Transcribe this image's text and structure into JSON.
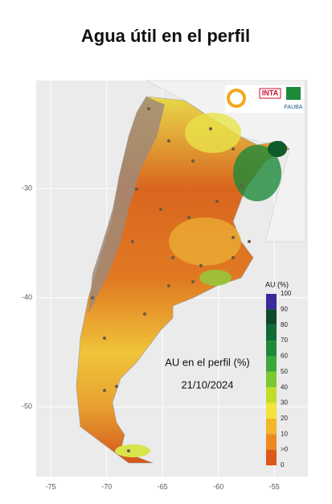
{
  "title": "Agua útil en el perfil",
  "map": {
    "xlim": [
      -76.3,
      -52
    ],
    "ylim": [
      -56.4,
      -20.1
    ],
    "xticks": [
      -75,
      -70,
      -65,
      -60,
      -55
    ],
    "yticks": [
      -30,
      -40,
      -50
    ],
    "annotation": "AU en el perfil (%)",
    "date": "21/10/2024",
    "logos": [
      "INTA",
      "FAUBA"
    ],
    "legend": {
      "title": "AU (%)",
      "labels": [
        "100",
        "90",
        "80",
        "70",
        "60",
        "50",
        "40",
        "30",
        "20",
        "10",
        ">0",
        "0"
      ],
      "colors": [
        "#3b2a9c",
        "#0b4a2a",
        "#0f6a33",
        "#1d8a3a",
        "#3aa83a",
        "#7cc832",
        "#c3dc2a",
        "#f2e43a",
        "#f3b52a",
        "#ec8a22",
        "#db5a1a",
        "#c8401a"
      ]
    }
  }
}
